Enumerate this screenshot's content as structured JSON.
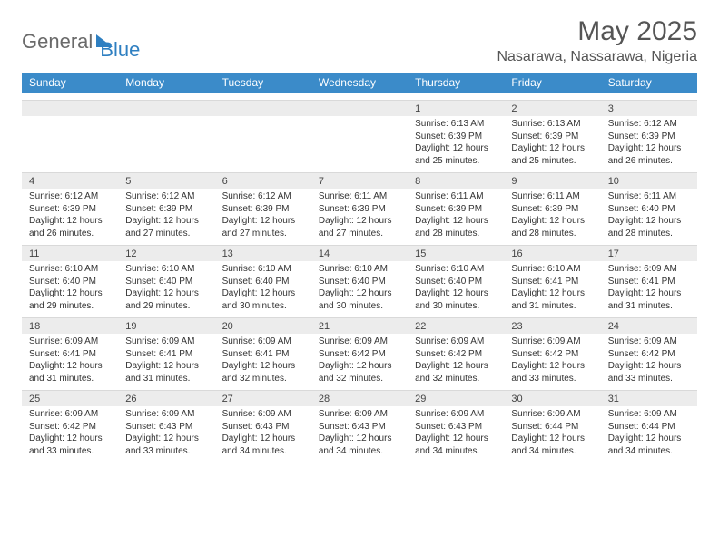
{
  "logo": {
    "text1": "General",
    "text2": "Blue"
  },
  "title": "May 2025",
  "location": "Nasarawa, Nassarawa, Nigeria",
  "colors": {
    "header_bg": "#3b8bc9",
    "header_text": "#ffffff",
    "daynum_bg": "#ececec",
    "body_bg": "#ffffff",
    "text": "#333333",
    "logo_gray": "#6a6a6a",
    "logo_blue": "#2e7fc1"
  },
  "day_names": [
    "Sunday",
    "Monday",
    "Tuesday",
    "Wednesday",
    "Thursday",
    "Friday",
    "Saturday"
  ],
  "weeks": [
    [
      {
        "n": "",
        "sr": "",
        "ss": "",
        "dl": ""
      },
      {
        "n": "",
        "sr": "",
        "ss": "",
        "dl": ""
      },
      {
        "n": "",
        "sr": "",
        "ss": "",
        "dl": ""
      },
      {
        "n": "",
        "sr": "",
        "ss": "",
        "dl": ""
      },
      {
        "n": "1",
        "sr": "Sunrise: 6:13 AM",
        "ss": "Sunset: 6:39 PM",
        "dl": "Daylight: 12 hours and 25 minutes."
      },
      {
        "n": "2",
        "sr": "Sunrise: 6:13 AM",
        "ss": "Sunset: 6:39 PM",
        "dl": "Daylight: 12 hours and 25 minutes."
      },
      {
        "n": "3",
        "sr": "Sunrise: 6:12 AM",
        "ss": "Sunset: 6:39 PM",
        "dl": "Daylight: 12 hours and 26 minutes."
      }
    ],
    [
      {
        "n": "4",
        "sr": "Sunrise: 6:12 AM",
        "ss": "Sunset: 6:39 PM",
        "dl": "Daylight: 12 hours and 26 minutes."
      },
      {
        "n": "5",
        "sr": "Sunrise: 6:12 AM",
        "ss": "Sunset: 6:39 PM",
        "dl": "Daylight: 12 hours and 27 minutes."
      },
      {
        "n": "6",
        "sr": "Sunrise: 6:12 AM",
        "ss": "Sunset: 6:39 PM",
        "dl": "Daylight: 12 hours and 27 minutes."
      },
      {
        "n": "7",
        "sr": "Sunrise: 6:11 AM",
        "ss": "Sunset: 6:39 PM",
        "dl": "Daylight: 12 hours and 27 minutes."
      },
      {
        "n": "8",
        "sr": "Sunrise: 6:11 AM",
        "ss": "Sunset: 6:39 PM",
        "dl": "Daylight: 12 hours and 28 minutes."
      },
      {
        "n": "9",
        "sr": "Sunrise: 6:11 AM",
        "ss": "Sunset: 6:39 PM",
        "dl": "Daylight: 12 hours and 28 minutes."
      },
      {
        "n": "10",
        "sr": "Sunrise: 6:11 AM",
        "ss": "Sunset: 6:40 PM",
        "dl": "Daylight: 12 hours and 28 minutes."
      }
    ],
    [
      {
        "n": "11",
        "sr": "Sunrise: 6:10 AM",
        "ss": "Sunset: 6:40 PM",
        "dl": "Daylight: 12 hours and 29 minutes."
      },
      {
        "n": "12",
        "sr": "Sunrise: 6:10 AM",
        "ss": "Sunset: 6:40 PM",
        "dl": "Daylight: 12 hours and 29 minutes."
      },
      {
        "n": "13",
        "sr": "Sunrise: 6:10 AM",
        "ss": "Sunset: 6:40 PM",
        "dl": "Daylight: 12 hours and 30 minutes."
      },
      {
        "n": "14",
        "sr": "Sunrise: 6:10 AM",
        "ss": "Sunset: 6:40 PM",
        "dl": "Daylight: 12 hours and 30 minutes."
      },
      {
        "n": "15",
        "sr": "Sunrise: 6:10 AM",
        "ss": "Sunset: 6:40 PM",
        "dl": "Daylight: 12 hours and 30 minutes."
      },
      {
        "n": "16",
        "sr": "Sunrise: 6:10 AM",
        "ss": "Sunset: 6:41 PM",
        "dl": "Daylight: 12 hours and 31 minutes."
      },
      {
        "n": "17",
        "sr": "Sunrise: 6:09 AM",
        "ss": "Sunset: 6:41 PM",
        "dl": "Daylight: 12 hours and 31 minutes."
      }
    ],
    [
      {
        "n": "18",
        "sr": "Sunrise: 6:09 AM",
        "ss": "Sunset: 6:41 PM",
        "dl": "Daylight: 12 hours and 31 minutes."
      },
      {
        "n": "19",
        "sr": "Sunrise: 6:09 AM",
        "ss": "Sunset: 6:41 PM",
        "dl": "Daylight: 12 hours and 31 minutes."
      },
      {
        "n": "20",
        "sr": "Sunrise: 6:09 AM",
        "ss": "Sunset: 6:41 PM",
        "dl": "Daylight: 12 hours and 32 minutes."
      },
      {
        "n": "21",
        "sr": "Sunrise: 6:09 AM",
        "ss": "Sunset: 6:42 PM",
        "dl": "Daylight: 12 hours and 32 minutes."
      },
      {
        "n": "22",
        "sr": "Sunrise: 6:09 AM",
        "ss": "Sunset: 6:42 PM",
        "dl": "Daylight: 12 hours and 32 minutes."
      },
      {
        "n": "23",
        "sr": "Sunrise: 6:09 AM",
        "ss": "Sunset: 6:42 PM",
        "dl": "Daylight: 12 hours and 33 minutes."
      },
      {
        "n": "24",
        "sr": "Sunrise: 6:09 AM",
        "ss": "Sunset: 6:42 PM",
        "dl": "Daylight: 12 hours and 33 minutes."
      }
    ],
    [
      {
        "n": "25",
        "sr": "Sunrise: 6:09 AM",
        "ss": "Sunset: 6:42 PM",
        "dl": "Daylight: 12 hours and 33 minutes."
      },
      {
        "n": "26",
        "sr": "Sunrise: 6:09 AM",
        "ss": "Sunset: 6:43 PM",
        "dl": "Daylight: 12 hours and 33 minutes."
      },
      {
        "n": "27",
        "sr": "Sunrise: 6:09 AM",
        "ss": "Sunset: 6:43 PM",
        "dl": "Daylight: 12 hours and 34 minutes."
      },
      {
        "n": "28",
        "sr": "Sunrise: 6:09 AM",
        "ss": "Sunset: 6:43 PM",
        "dl": "Daylight: 12 hours and 34 minutes."
      },
      {
        "n": "29",
        "sr": "Sunrise: 6:09 AM",
        "ss": "Sunset: 6:43 PM",
        "dl": "Daylight: 12 hours and 34 minutes."
      },
      {
        "n": "30",
        "sr": "Sunrise: 6:09 AM",
        "ss": "Sunset: 6:44 PM",
        "dl": "Daylight: 12 hours and 34 minutes."
      },
      {
        "n": "31",
        "sr": "Sunrise: 6:09 AM",
        "ss": "Sunset: 6:44 PM",
        "dl": "Daylight: 12 hours and 34 minutes."
      }
    ]
  ]
}
